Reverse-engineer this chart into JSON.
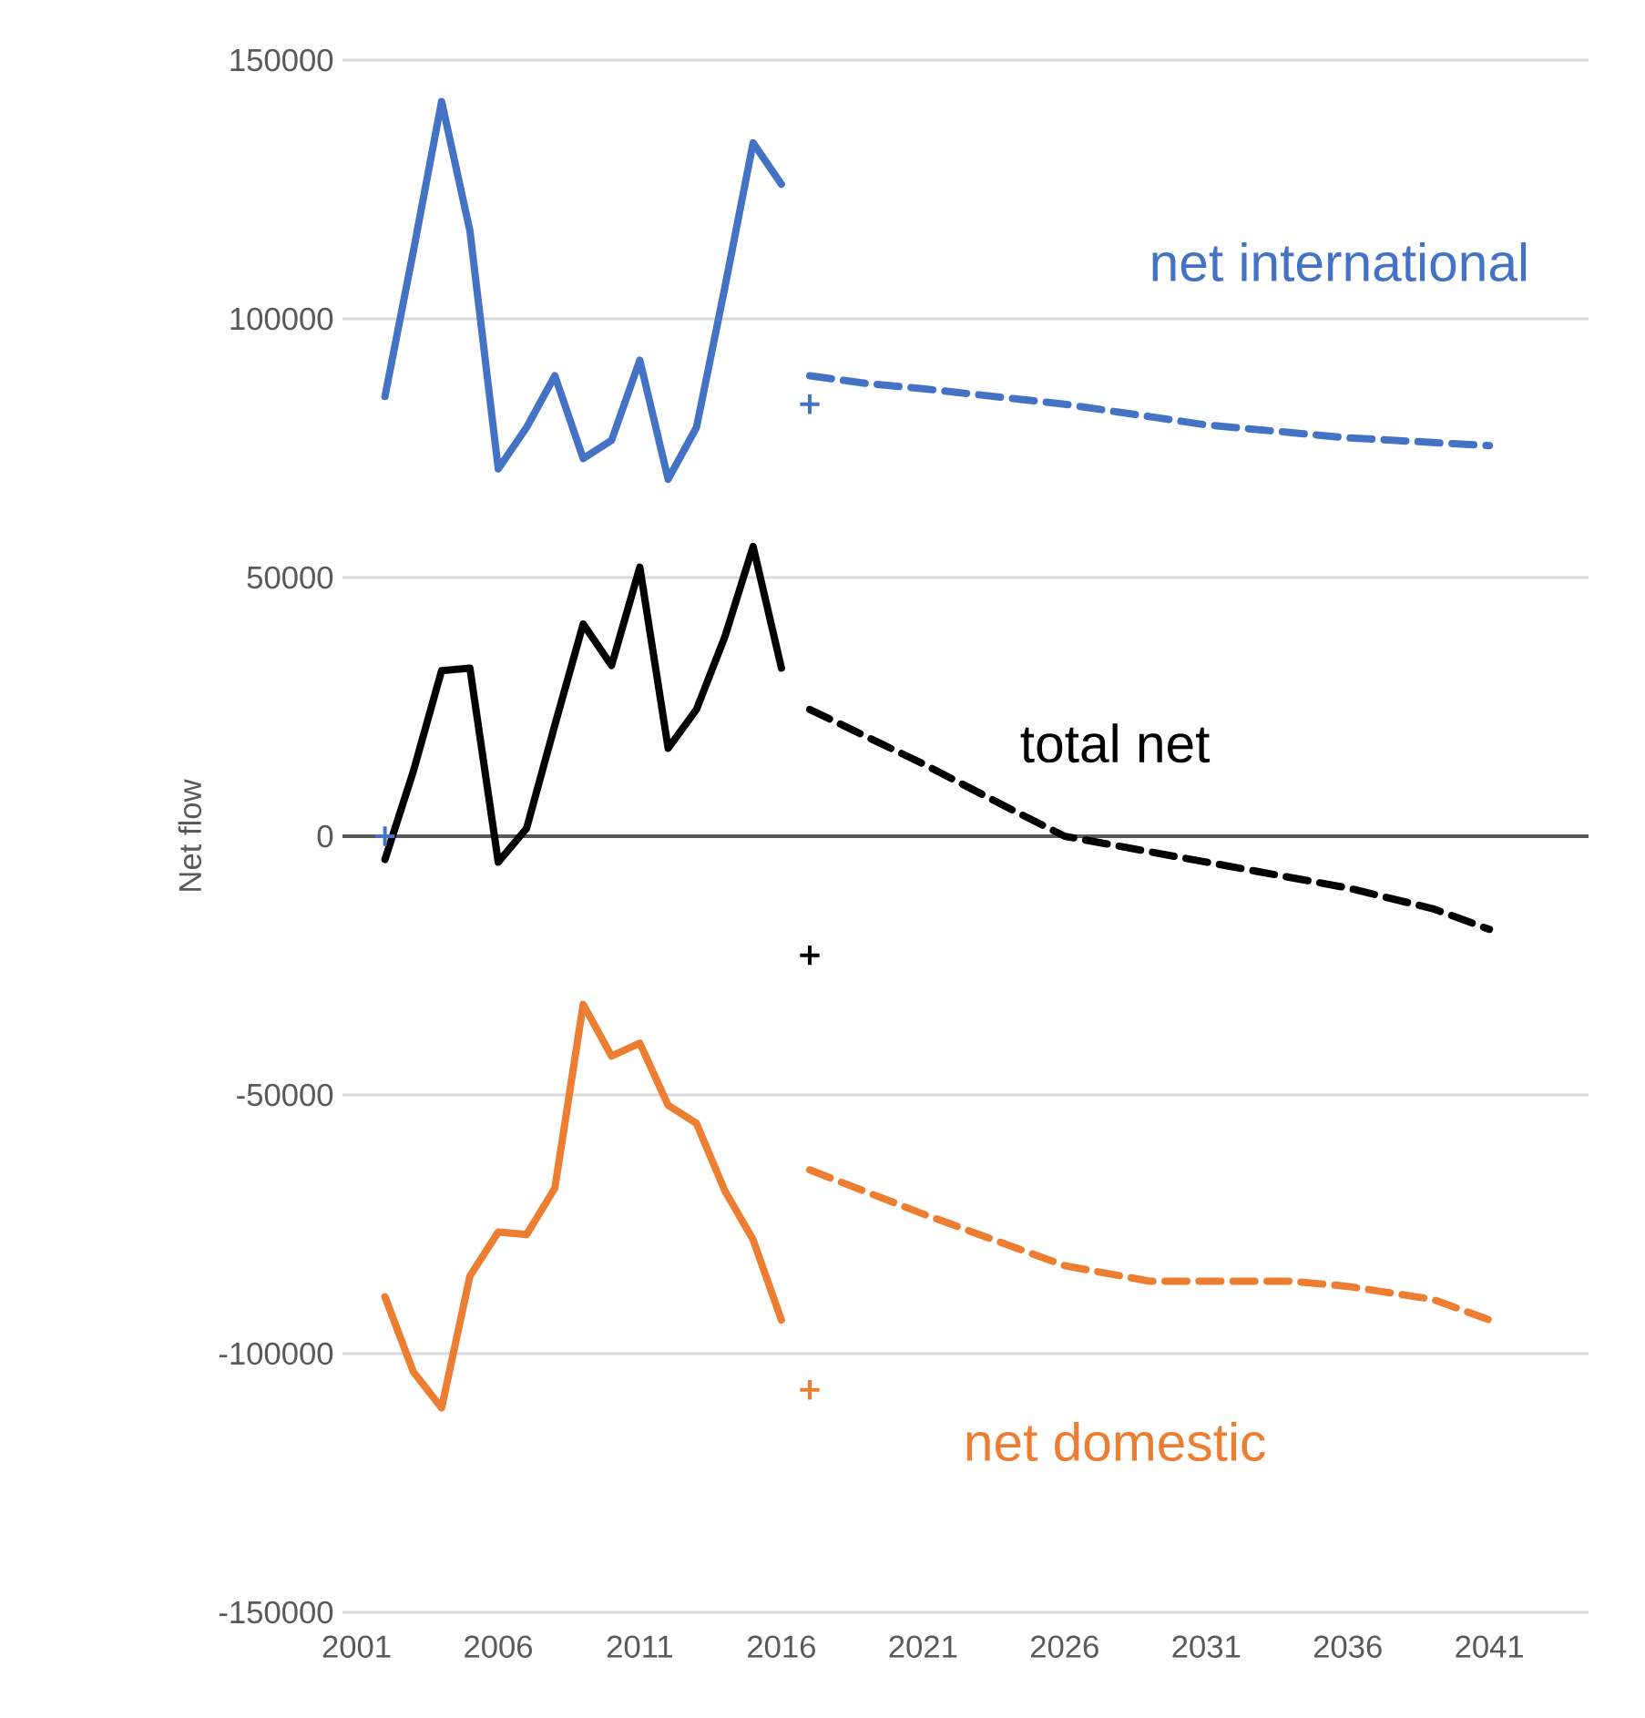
{
  "chart_data": {
    "type": "line",
    "ylabel": "Net flow",
    "xlim": [
      2000.5,
      2044.5
    ],
    "xticks": [
      2001,
      2006,
      2011,
      2016,
      2021,
      2026,
      2031,
      2036,
      2041
    ],
    "ylim": [
      -150000,
      150000
    ],
    "yticks": [
      -150000,
      -100000,
      -50000,
      0,
      50000,
      100000,
      150000
    ],
    "grid": "y",
    "marker": "none",
    "line_style": "solid",
    "ref_lines": [
      {
        "axis": "y",
        "value": 0,
        "color": "#595959"
      }
    ],
    "series": [
      {
        "name": "net international",
        "color": "#4472c4",
        "x": [
          2002,
          2003,
          2004,
          2005,
          2006,
          2007,
          2008,
          2009,
          2010,
          2011,
          2012,
          2013,
          2014,
          2015,
          2016
        ],
        "values": [
          85000,
          113000,
          142000,
          117000,
          71000,
          79000,
          89000,
          73000,
          76500,
          92000,
          69000,
          79000,
          106000,
          134000,
          126000
        ]
      },
      {
        "color": "#4472c4",
        "line_style": "dashed",
        "x": [
          2017,
          2019,
          2021,
          2026,
          2031,
          2036,
          2041
        ],
        "values": [
          89000,
          87500,
          86500,
          83500,
          79500,
          77000,
          75500
        ]
      },
      {
        "color": "#4472c4",
        "type": "scatter",
        "marker": "cross",
        "x": [
          2002,
          2017
        ],
        "values": [
          0,
          83500
        ]
      },
      {
        "name": "total net",
        "color": "#000000",
        "x": [
          2002,
          2003,
          2004,
          2005,
          2006,
          2007,
          2008,
          2009,
          2010,
          2011,
          2012,
          2013,
          2014,
          2015,
          2016
        ],
        "values": [
          -4500,
          12500,
          32000,
          32500,
          -5000,
          1500,
          21500,
          41000,
          33000,
          52000,
          17000,
          24500,
          38500,
          56000,
          32500
        ]
      },
      {
        "color": "#000000",
        "line_style": "dashed",
        "x": [
          2017,
          2021,
          2024,
          2026,
          2031,
          2036,
          2039,
          2041
        ],
        "values": [
          24500,
          14000,
          5500,
          0,
          -5000,
          -10000,
          -14000,
          -18000
        ]
      },
      {
        "color": "#000000",
        "type": "scatter",
        "marker": "cross",
        "x": [
          2017
        ],
        "values": [
          -23000
        ]
      },
      {
        "name": "net domestic",
        "color": "#ed7d31",
        "x": [
          2002,
          2003,
          2004,
          2005,
          2006,
          2007,
          2008,
          2009,
          2010,
          2011,
          2012,
          2013,
          2014,
          2015,
          2016
        ],
        "values": [
          -89000,
          -103500,
          -110500,
          -85000,
          -76500,
          -77000,
          -68000,
          -32500,
          -42500,
          -40000,
          -52000,
          -55500,
          -68500,
          -78000,
          -93500
        ]
      },
      {
        "color": "#ed7d31",
        "line_style": "dashed",
        "x": [
          2017,
          2021,
          2026,
          2029,
          2031,
          2034,
          2036,
          2039,
          2041
        ],
        "values": [
          -64500,
          -73000,
          -83000,
          -86000,
          -86000,
          -86000,
          -87000,
          -89500,
          -93500
        ]
      },
      {
        "color": "#ed7d31",
        "type": "scatter",
        "marker": "cross",
        "x": [
          2017
        ],
        "values": [
          -107000
        ]
      }
    ]
  }
}
